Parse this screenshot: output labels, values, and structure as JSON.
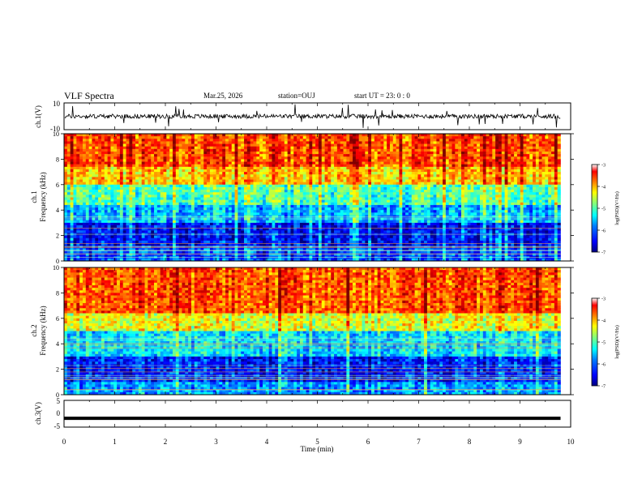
{
  "header": {
    "title": "VLF Spectra",
    "date": "Mar.25, 2026",
    "station": "station=OUJ",
    "start": "start  UT =   23: 0  : 0"
  },
  "chart_data": [
    {
      "type": "line",
      "id": "ch1-waveform",
      "ylabel": "ch.1(V)",
      "ylim": [
        -10,
        10
      ],
      "y_ticks": [
        "10",
        "-10"
      ],
      "xlim": [
        0,
        10
      ],
      "description_level_V": 0
    },
    {
      "type": "heatmap",
      "id": "ch1-spectrogram",
      "ylabel": "ch.1\nFrequency (kHz)",
      "ylabel_line1": "ch.1",
      "ylabel_line2": "Frequency (kHz)",
      "ylim": [
        0,
        10
      ],
      "y_ticks": [
        "0",
        "2",
        "4",
        "6",
        "8",
        "10"
      ],
      "xlim": [
        0,
        10
      ],
      "data_end_min": 9.8,
      "colorbar": {
        "label": "log(PSD)(V²/Hz)",
        "range": [
          -7,
          -3
        ],
        "ticks": [
          "-3",
          "-4",
          "-5",
          "-6",
          "-7"
        ]
      },
      "bands": [
        {
          "from_khz": 0,
          "to_khz": 1,
          "log_psd": -6.2
        },
        {
          "from_khz": 1,
          "to_khz": 3,
          "log_psd": -6.5
        },
        {
          "from_khz": 3,
          "to_khz": 4.5,
          "log_psd": -5.8
        },
        {
          "from_khz": 4.5,
          "to_khz": 6,
          "log_psd": -5.2
        },
        {
          "from_khz": 6,
          "to_khz": 7.5,
          "log_psd": -4.3
        },
        {
          "from_khz": 7.5,
          "to_khz": 10,
          "log_psd": -3.8
        }
      ]
    },
    {
      "type": "heatmap",
      "id": "ch2-spectrogram",
      "ylabel_line1": "ch.2",
      "ylabel_line2": "Frequency (kHz)",
      "ylim": [
        0,
        10
      ],
      "y_ticks": [
        "0",
        "2",
        "4",
        "6",
        "8",
        "10"
      ],
      "xlim": [
        0,
        10
      ],
      "data_end_min": 9.8,
      "colorbar": {
        "label": "log(PSD)(V²/Hz)",
        "range": [
          -7,
          -3
        ],
        "ticks": [
          "-3",
          "-4",
          "-5",
          "-6",
          "-7"
        ]
      },
      "bands": [
        {
          "from_khz": 0,
          "to_khz": 1,
          "log_psd": -5.9
        },
        {
          "from_khz": 1,
          "to_khz": 3,
          "log_psd": -6.4
        },
        {
          "from_khz": 3,
          "to_khz": 5,
          "log_psd": -5.6
        },
        {
          "from_khz": 5,
          "to_khz": 6.5,
          "log_psd": -4.6
        },
        {
          "from_khz": 6.5,
          "to_khz": 10,
          "log_psd": -3.8
        }
      ]
    },
    {
      "type": "line",
      "id": "ch3-waveform",
      "ylabel": "ch.3(V)",
      "ylim": [
        -5,
        5
      ],
      "y_ticks": [
        "5",
        "0",
        "-5"
      ],
      "xlim": [
        0,
        10
      ],
      "level_V": -1.7
    }
  ],
  "xaxis": {
    "label": "Time (min)",
    "ticks": [
      "0",
      "1",
      "2",
      "3",
      "4",
      "5",
      "6",
      "7",
      "8",
      "9",
      "10"
    ]
  },
  "colors": {
    "jet": [
      "#00007f",
      "#0000ff",
      "#007fff",
      "#00ffff",
      "#7fff7f",
      "#ffff00",
      "#ff7f00",
      "#ff0000",
      "#7f0000"
    ]
  }
}
